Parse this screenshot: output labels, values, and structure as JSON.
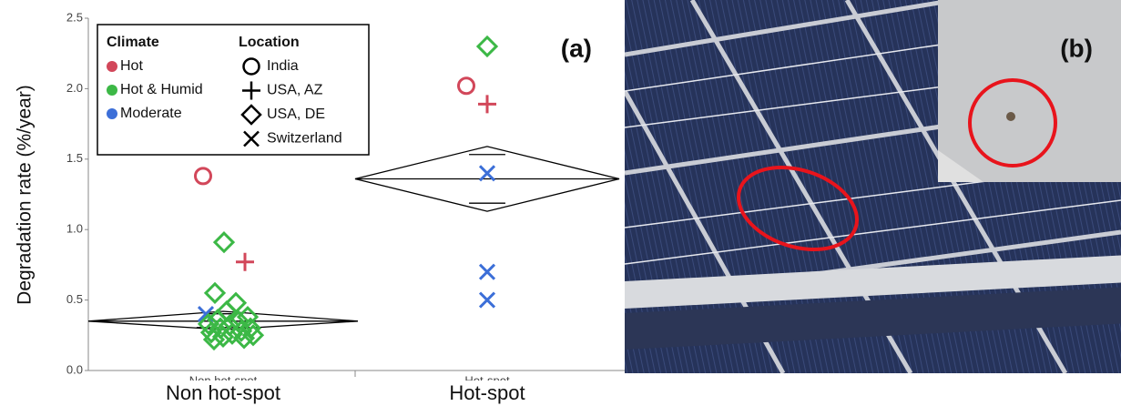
{
  "chart_data": {
    "type": "scatter",
    "y_label": "Degradation rate (%/year)",
    "panel_a": "(a)",
    "panel_b": "(b)",
    "categories": [
      "Non hot-spot",
      "Hot-spot"
    ],
    "ylim": [
      0,
      2.5
    ],
    "yticks": [
      {
        "value": 0,
        "label": "0.0"
      },
      0.5,
      {
        "value": 1,
        "label": "1.0"
      },
      1.5,
      {
        "value": 2,
        "label": "2.0"
      },
      2.5
    ],
    "legend": {
      "climate_title": "Climate",
      "location_title": "Location",
      "climates": [
        {
          "name": "Hot",
          "color": "#d2475a"
        },
        {
          "name": "Hot & Humid",
          "color": "#3cb846"
        },
        {
          "name": "Moderate",
          "color": "#3c6fd8"
        }
      ],
      "locations": [
        {
          "name": "India",
          "marker": "circle"
        },
        {
          "name": "USA, AZ",
          "marker": "plus"
        },
        {
          "name": "USA, DE",
          "marker": "diamond"
        },
        {
          "name": "Switzerland",
          "marker": "cross"
        }
      ]
    },
    "diamonds": [
      {
        "mean": 0.35,
        "upper": 0.42,
        "lower": 0.29
      },
      {
        "mean": 1.36,
        "upper": 1.59,
        "lower": 1.13
      }
    ],
    "points": [
      {
        "category": 0,
        "climate": 0,
        "location": 0,
        "value": 1.38
      },
      {
        "category": 0,
        "climate": 1,
        "location": 2,
        "value": 0.91
      },
      {
        "category": 0,
        "climate": 0,
        "location": 1,
        "value": 0.77
      },
      {
        "category": 0,
        "climate": 1,
        "location": 2,
        "value": 0.55
      },
      {
        "category": 0,
        "climate": 1,
        "location": 2,
        "value": 0.48
      },
      {
        "category": 0,
        "climate": 2,
        "location": 3,
        "value": 0.4
      },
      {
        "category": 0,
        "climate": 1,
        "location": 2,
        "value": 0.42
      },
      {
        "category": 0,
        "climate": 1,
        "location": 2,
        "value": 0.38
      },
      {
        "category": 0,
        "climate": 1,
        "location": 2,
        "value": 0.36
      },
      {
        "category": 0,
        "climate": 1,
        "location": 2,
        "value": 0.35
      },
      {
        "category": 0,
        "climate": 1,
        "location": 2,
        "value": 0.33
      },
      {
        "category": 0,
        "climate": 1,
        "location": 2,
        "value": 0.32
      },
      {
        "category": 0,
        "climate": 1,
        "location": 2,
        "value": 0.3
      },
      {
        "category": 0,
        "climate": 1,
        "location": 2,
        "value": 0.3
      },
      {
        "category": 0,
        "climate": 1,
        "location": 2,
        "value": 0.28
      },
      {
        "category": 0,
        "climate": 1,
        "location": 2,
        "value": 0.27
      },
      {
        "category": 0,
        "climate": 1,
        "location": 2,
        "value": 0.26
      },
      {
        "category": 0,
        "climate": 1,
        "location": 2,
        "value": 0.25
      },
      {
        "category": 0,
        "climate": 1,
        "location": 2,
        "value": 0.24
      },
      {
        "category": 0,
        "climate": 1,
        "location": 2,
        "value": 0.23
      },
      {
        "category": 0,
        "climate": 1,
        "location": 2,
        "value": 0.22
      },
      {
        "category": 1,
        "climate": 1,
        "location": 2,
        "value": 2.3
      },
      {
        "category": 1,
        "climate": 0,
        "location": 0,
        "value": 2.02
      },
      {
        "category": 1,
        "climate": 0,
        "location": 1,
        "value": 1.89
      },
      {
        "category": 1,
        "climate": 2,
        "location": 3,
        "value": 1.4
      },
      {
        "category": 1,
        "climate": 2,
        "location": 3,
        "value": 0.7
      },
      {
        "category": 1,
        "climate": 2,
        "location": 3,
        "value": 0.5
      }
    ]
  }
}
